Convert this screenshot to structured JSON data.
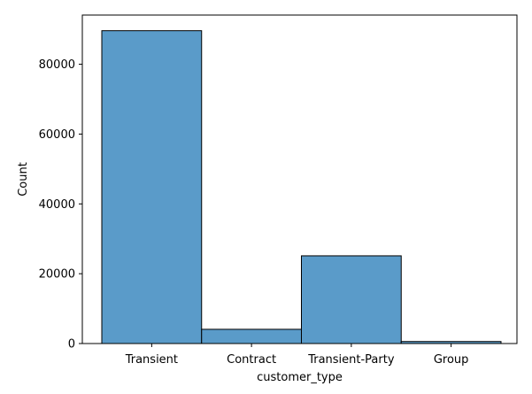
{
  "chart_data": {
    "type": "bar",
    "categories": [
      "Transient",
      "Contract",
      "Transient-Party",
      "Group"
    ],
    "values": [
      89613,
      4076,
      25124,
      577
    ],
    "title": "",
    "xlabel": "customer_type",
    "ylabel": "Count",
    "ylim": [
      0,
      94094
    ],
    "yticks": [
      0,
      20000,
      40000,
      60000,
      80000
    ],
    "ytick_labels": [
      "0",
      "20000",
      "40000",
      "60000",
      "80000"
    ],
    "grid": false,
    "legend": "none",
    "colors": {
      "bar_fill": "#5a9bc9",
      "bar_edge": "#000000",
      "axes": "#000000"
    }
  }
}
